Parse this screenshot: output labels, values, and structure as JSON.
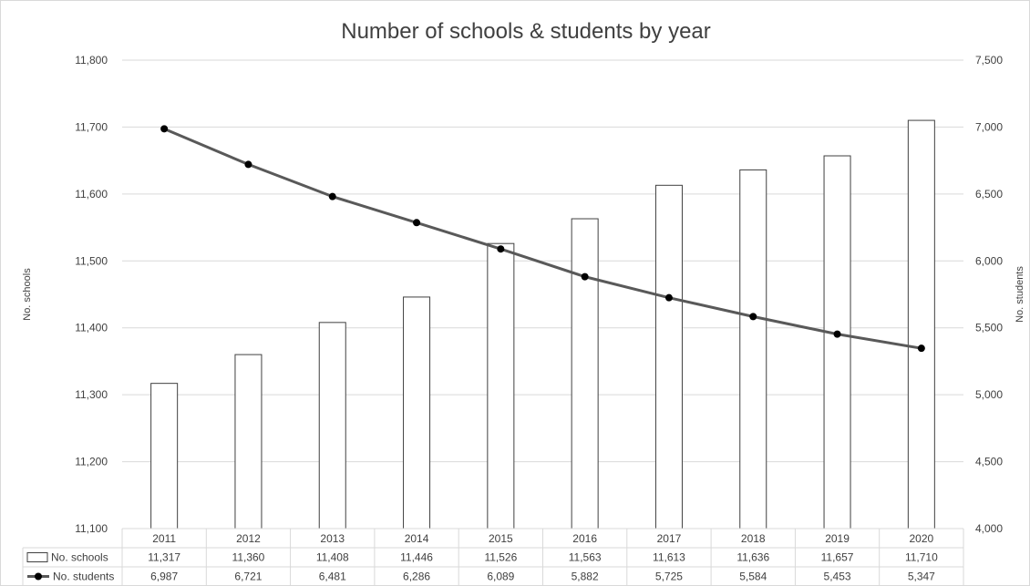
{
  "chart_data": {
    "type": "bar",
    "title": "Number of schools & students by year",
    "categories": [
      "2011",
      "2012",
      "2013",
      "2014",
      "2015",
      "2016",
      "2017",
      "2018",
      "2019",
      "2020"
    ],
    "series": [
      {
        "name": "No. schools",
        "kind": "bar",
        "axis": "left",
        "values": [
          11317,
          11360,
          11408,
          11446,
          11526,
          11563,
          11613,
          11636,
          11657,
          11710
        ],
        "labels": [
          "11,317",
          "11,360",
          "11,408",
          "11,446",
          "11,526",
          "11,563",
          "11,613",
          "11,636",
          "11,657",
          "11,710"
        ]
      },
      {
        "name": "No. students",
        "kind": "line",
        "axis": "right",
        "values": [
          6987,
          6721,
          6481,
          6286,
          6089,
          5882,
          5725,
          5584,
          5453,
          5347
        ],
        "labels": [
          "6,987",
          "6,721",
          "6,481",
          "6,286",
          "6,089",
          "5,882",
          "5,725",
          "5,584",
          "5,453",
          "5,347"
        ]
      }
    ],
    "y_left": {
      "label": "No. schools",
      "range": [
        11100,
        11800
      ],
      "ticks": [
        11100,
        11200,
        11300,
        11400,
        11500,
        11600,
        11700,
        11800
      ],
      "tick_labels": [
        "11,100",
        "11,200",
        "11,300",
        "11,400",
        "11,500",
        "11,600",
        "11,700",
        "11,800"
      ]
    },
    "y_right": {
      "label": "No. students",
      "range": [
        4000,
        7500
      ],
      "ticks": [
        4000,
        4500,
        5000,
        5500,
        6000,
        6500,
        7000,
        7500
      ],
      "tick_labels": [
        "4,000",
        "4,500",
        "5,000",
        "5,500",
        "6,000",
        "6,500",
        "7,000",
        "7,500"
      ]
    },
    "grid": true,
    "legend": "data-table",
    "colors": {
      "bar_fill": "#ffffff",
      "bar_stroke": "#404040",
      "line": "#595959",
      "marker": "#000000",
      "grid": "#d9d9d9",
      "text": "#404040"
    }
  }
}
